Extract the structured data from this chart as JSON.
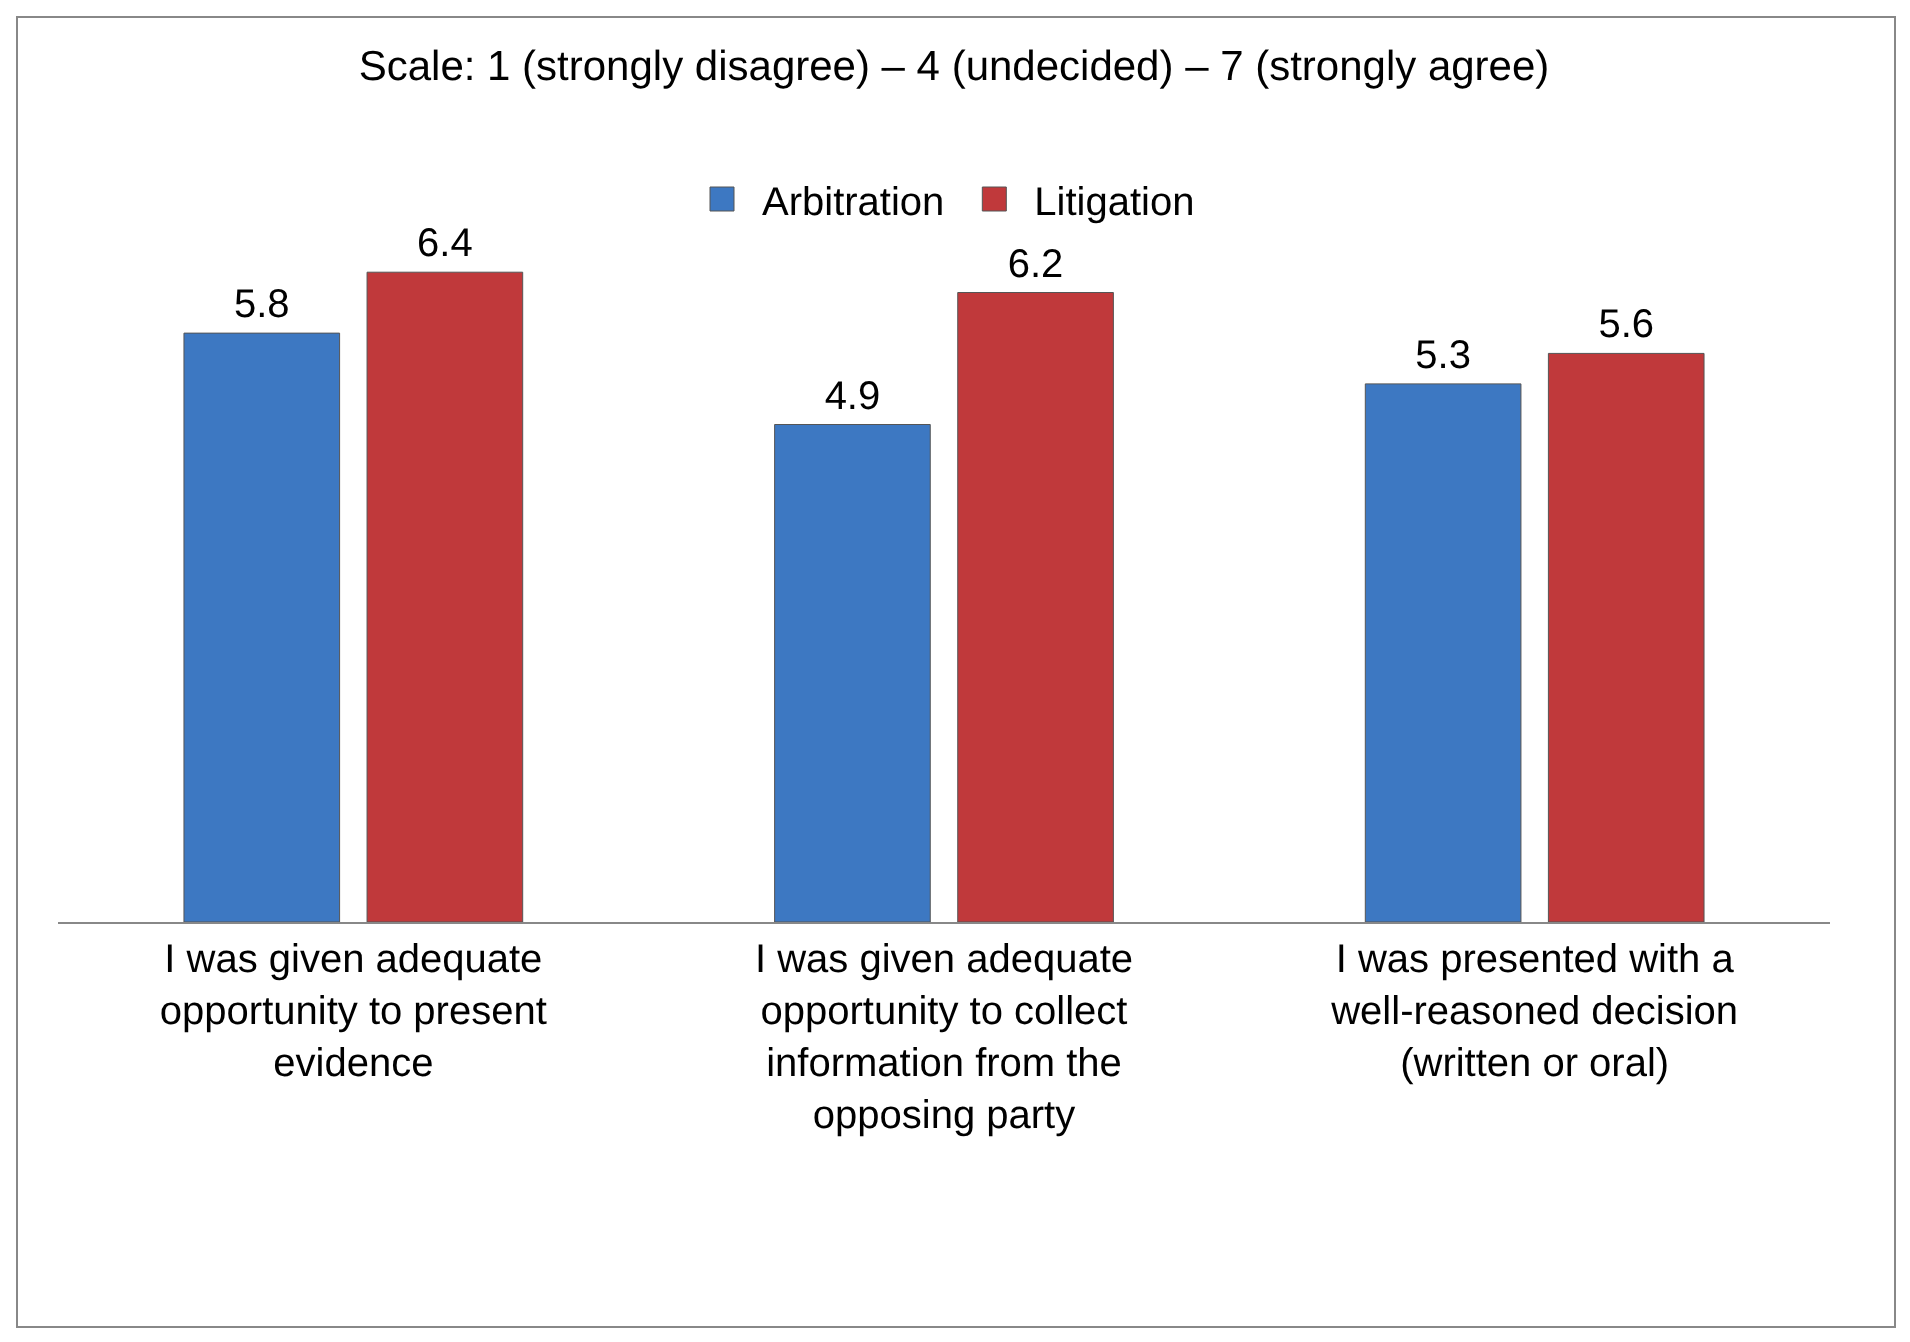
{
  "chart_data": {
    "type": "bar",
    "title": "Scale: 1 (strongly disagree) – 4 (undecided) – 7 (strongly agree)",
    "categories": [
      "I was given adequate opportunity to present evidence",
      "I was given adequate opportunity to collect information from the opposing party",
      "I was presented with a well-reasoned decision (written or oral)"
    ],
    "series": [
      {
        "name": "Arbitration",
        "color": "#3d78c2",
        "values": [
          5.8,
          4.9,
          5.3
        ]
      },
      {
        "name": "Litigation",
        "color": "#c0393b",
        "values": [
          6.4,
          6.2,
          5.6
        ]
      }
    ],
    "data_labels": true,
    "legend": "top"
  }
}
